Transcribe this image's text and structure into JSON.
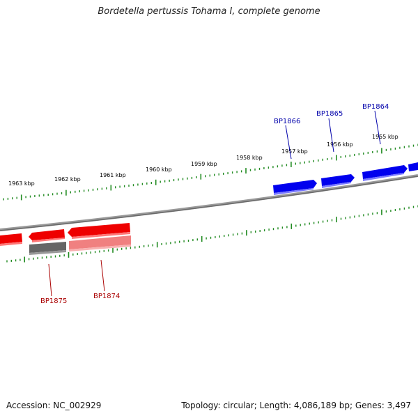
{
  "title": "Bordetella pertussis Tohama I, complete genome",
  "footer": {
    "accession": "Accession: NC_002929",
    "summary": "Topology: circular; Length: 4,086,189 bp; Genes: 3,497"
  },
  "colors": {
    "forward_gene": "#0000ee",
    "reverse_gene": "#ee0000",
    "reverse_gene_light": "#f08080",
    "pseudo_gene": "#666666",
    "backbone": "#808080",
    "ticks": "#228b22",
    "forward_label": "#0000aa",
    "reverse_label": "#aa0000"
  },
  "scale_labels": [
    "1963 kbp",
    "1962 kbp",
    "1961 kbp",
    "1960 kbp",
    "1959 kbp",
    "1958 kbp",
    "1957 kbp",
    "1956 kbp",
    "1955 kbp"
  ],
  "genes": [
    {
      "name": "BP1866",
      "strand": "forward"
    },
    {
      "name": "BP1865",
      "strand": "forward"
    },
    {
      "name": "BP1864",
      "strand": "forward"
    },
    {
      "name": "BP1875",
      "strand": "reverse"
    },
    {
      "name": "BP1874",
      "strand": "reverse"
    }
  ]
}
